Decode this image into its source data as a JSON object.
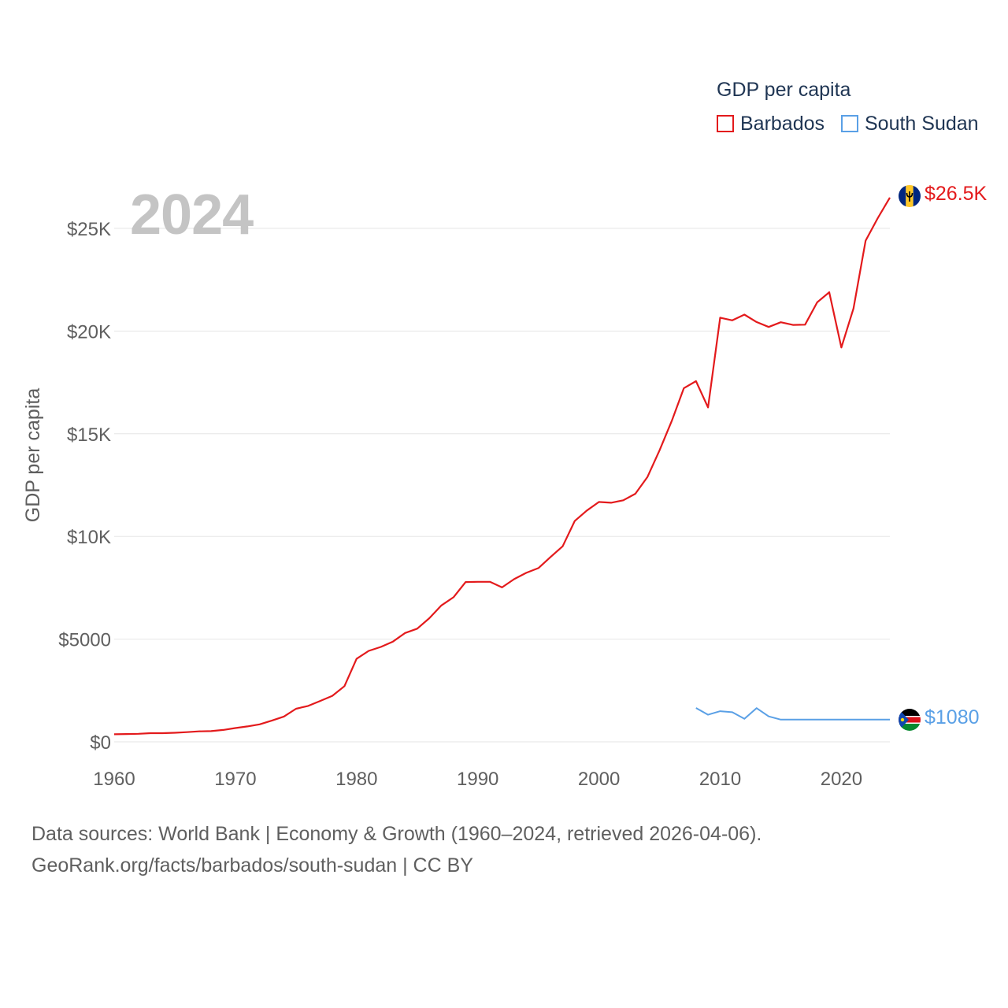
{
  "legend": {
    "title": "GDP per capita",
    "items": [
      {
        "name": "Barbados",
        "color": "#e31a1c"
      },
      {
        "name": "South Sudan",
        "color": "#5aa0e6"
      }
    ]
  },
  "year_label": "2024",
  "end_labels": {
    "barbados": "$26.5K",
    "south_sudan": "$1080"
  },
  "source": {
    "line1": "Data sources: World Bank | Economy & Growth (1960–2024, retrieved 2026-04-06).",
    "line2": "GeoRank.org/facts/barbados/south-sudan | CC BY"
  },
  "chart_data": {
    "type": "line",
    "title": "",
    "xlabel": "",
    "ylabel": "GDP per capita",
    "xlim": [
      1960,
      2024
    ],
    "ylim": [
      0,
      26500
    ],
    "y_ticks": [
      {
        "value": 0,
        "label": "$0"
      },
      {
        "value": 5000,
        "label": "$5000"
      },
      {
        "value": 10000,
        "label": "$10K"
      },
      {
        "value": 15000,
        "label": "$15K"
      },
      {
        "value": 20000,
        "label": "$20K"
      },
      {
        "value": 25000,
        "label": "$25K"
      }
    ],
    "x_ticks": [
      {
        "value": 1960,
        "label": "1960"
      },
      {
        "value": 1970,
        "label": "1970"
      },
      {
        "value": 1980,
        "label": "1980"
      },
      {
        "value": 1990,
        "label": "1990"
      },
      {
        "value": 2000,
        "label": "2000"
      },
      {
        "value": 2010,
        "label": "2010"
      },
      {
        "value": 2020,
        "label": "2020"
      }
    ],
    "series": [
      {
        "name": "Barbados",
        "color": "#e31a1c",
        "x": [
          1960,
          1961,
          1962,
          1963,
          1964,
          1965,
          1966,
          1967,
          1968,
          1969,
          1970,
          1971,
          1972,
          1973,
          1974,
          1975,
          1976,
          1977,
          1978,
          1979,
          1980,
          1981,
          1982,
          1983,
          1984,
          1985,
          1986,
          1987,
          1988,
          1989,
          1990,
          1991,
          1992,
          1993,
          1994,
          1995,
          1996,
          1997,
          1998,
          1999,
          2000,
          2001,
          2002,
          2003,
          2004,
          2005,
          2006,
          2007,
          2008,
          2009,
          2010,
          2011,
          2012,
          2013,
          2014,
          2015,
          2016,
          2017,
          2018,
          2019,
          2020,
          2021,
          2022,
          2023,
          2024
        ],
        "values": [
          370,
          380,
          390,
          420,
          420,
          440,
          470,
          510,
          520,
          580,
          670,
          750,
          850,
          1030,
          1230,
          1610,
          1750,
          1990,
          2240,
          2710,
          4040,
          4430,
          4620,
          4880,
          5300,
          5510,
          6020,
          6640,
          7040,
          7780,
          7790,
          7790,
          7520,
          7920,
          8230,
          8460,
          9000,
          9520,
          10750,
          11260,
          11680,
          11640,
          11760,
          12080,
          12900,
          14200,
          15620,
          17220,
          17560,
          16280,
          20650,
          20520,
          20800,
          20440,
          20200,
          20430,
          20300,
          20310,
          21400,
          21890,
          19200,
          21100,
          24400,
          25500,
          26500
        ]
      },
      {
        "name": "South Sudan",
        "color": "#5aa0e6",
        "x": [
          2008,
          2009,
          2010,
          2011,
          2012,
          2013,
          2014,
          2015,
          2016,
          2017,
          2018,
          2019,
          2020,
          2021,
          2022,
          2023,
          2024
        ],
        "values": [
          1650,
          1320,
          1490,
          1440,
          1120,
          1640,
          1240,
          1080,
          1080,
          1080,
          1080,
          1080,
          1080,
          1080,
          1080,
          1080,
          1080
        ]
      }
    ]
  }
}
